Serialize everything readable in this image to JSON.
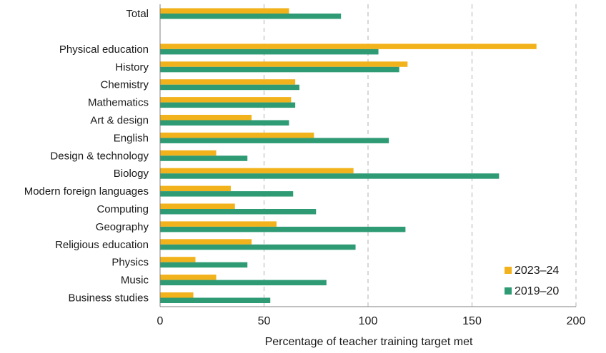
{
  "chart_data": {
    "type": "bar",
    "orientation": "horizontal",
    "title": "",
    "xlabel": "Percentage of teacher training target met",
    "ylabel": "",
    "xlim": [
      0,
      200
    ],
    "xticks": [
      0,
      50,
      100,
      150,
      200
    ],
    "grid": "vertical dashed",
    "legend_position": "bottom-right",
    "categories": [
      "Total",
      "Physical education",
      "History",
      "Chemistry",
      "Mathematics",
      "Art & design",
      "English",
      "Design & technology",
      "Biology",
      "Modern foreign languages",
      "Computing",
      "Geography",
      "Religious education",
      "Physics",
      "Music",
      "Business studies"
    ],
    "series": [
      {
        "name": "2023–24",
        "color": "#F2B21B",
        "values": [
          62,
          181,
          119,
          65,
          63,
          44,
          74,
          27,
          93,
          34,
          36,
          56,
          44,
          17,
          27,
          16
        ]
      },
      {
        "name": "2019–20",
        "color": "#2E9B75",
        "values": [
          87,
          105,
          115,
          67,
          65,
          62,
          110,
          42,
          163,
          64,
          75,
          118,
          94,
          42,
          80,
          53
        ]
      }
    ]
  }
}
